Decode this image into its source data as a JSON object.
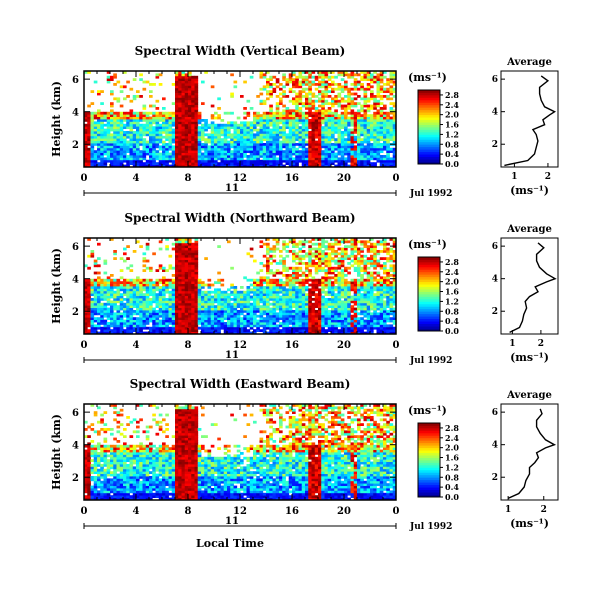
{
  "chart_data": [
    {
      "type": "heatmap",
      "title": "Spectral Width (Vertical Beam)",
      "ylabel": "Height (km)",
      "x_ticks": [
        "0",
        "4",
        "8",
        "12",
        "16",
        "20",
        "0"
      ],
      "y_ticks": [
        "2",
        "4",
        "6"
      ],
      "xlim": [
        0,
        24
      ],
      "ylim": [
        0.6,
        6.5
      ],
      "date_day": "11",
      "date_label": "Jul 1992",
      "colorbar": {
        "unit": "(ms⁻¹)",
        "ticks": [
          "0.0",
          "0.4",
          "0.8",
          "1.2",
          "1.6",
          "2.0",
          "2.4",
          "2.8"
        ],
        "range": [
          0,
          3.0
        ]
      },
      "profile": {
        "title": "Average",
        "xlabel": "(ms⁻¹)",
        "x_ticks": [
          "1",
          "2"
        ],
        "y_ticks": [
          "2",
          "4",
          "6"
        ],
        "xlim": [
          0.6,
          2.3
        ],
        "heights": [
          0.7,
          1.0,
          1.4,
          1.8,
          2.2,
          2.6,
          2.9,
          3.2,
          3.5,
          3.8,
          4.0,
          4.3,
          4.7,
          5.1,
          5.5,
          5.9,
          6.2
        ],
        "values": [
          0.7,
          1.4,
          1.6,
          1.65,
          1.7,
          1.65,
          1.55,
          1.9,
          1.85,
          2.05,
          2.2,
          1.9,
          1.8,
          1.75,
          1.75,
          2.0,
          1.8
        ]
      }
    },
    {
      "type": "heatmap",
      "title": "Spectral Width (Northward Beam)",
      "ylabel": "Height (km)",
      "x_ticks": [
        "0",
        "4",
        "8",
        "12",
        "16",
        "20",
        "0"
      ],
      "y_ticks": [
        "2",
        "4",
        "6"
      ],
      "xlim": [
        0,
        24
      ],
      "ylim": [
        0.6,
        6.5
      ],
      "date_day": "11",
      "date_label": "Jul 1992",
      "colorbar": {
        "unit": "(ms⁻¹)",
        "ticks": [
          "0.0",
          "0.4",
          "0.8",
          "1.2",
          "1.6",
          "2.0",
          "2.4",
          "2.8"
        ],
        "range": [
          0,
          3.0
        ]
      },
      "profile": {
        "title": "Average",
        "xlabel": "(ms⁻¹)",
        "x_ticks": [
          "1",
          "2"
        ],
        "y_ticks": [
          "2",
          "4",
          "6"
        ],
        "xlim": [
          0.6,
          2.6
        ],
        "heights": [
          0.7,
          1.0,
          1.4,
          1.8,
          2.2,
          2.6,
          2.9,
          3.2,
          3.5,
          3.8,
          4.0,
          4.3,
          4.7,
          5.1,
          5.5,
          5.9,
          6.2
        ],
        "values": [
          0.9,
          1.25,
          1.35,
          1.4,
          1.5,
          1.45,
          1.6,
          1.9,
          1.8,
          2.2,
          2.5,
          2.2,
          1.95,
          1.85,
          1.85,
          2.1,
          1.9
        ]
      }
    },
    {
      "type": "heatmap",
      "title": "Spectral Width (Eastward Beam)",
      "ylabel": "Height (km)",
      "x_ticks": [
        "0",
        "4",
        "8",
        "12",
        "16",
        "20",
        "0"
      ],
      "y_ticks": [
        "2",
        "4",
        "6"
      ],
      "xlim": [
        0,
        24
      ],
      "ylim": [
        0.6,
        6.5
      ],
      "date_day": "11",
      "date_label": "Jul 1992",
      "xlabel": "Local Time",
      "colorbar": {
        "unit": "(ms⁻¹)",
        "ticks": [
          "0.0",
          "0.4",
          "0.8",
          "1.2",
          "1.6",
          "2.0",
          "2.4",
          "2.8"
        ],
        "range": [
          0,
          3.0
        ]
      },
      "profile": {
        "title": "Average",
        "xlabel": "(ms⁻¹)",
        "x_ticks": [
          "1",
          "2"
        ],
        "y_ticks": [
          "2",
          "4",
          "6"
        ],
        "xlim": [
          0.8,
          2.4
        ],
        "heights": [
          0.7,
          1.0,
          1.4,
          1.8,
          2.2,
          2.6,
          2.9,
          3.2,
          3.5,
          3.8,
          4.0,
          4.3,
          4.7,
          5.1,
          5.5,
          5.9,
          6.2
        ],
        "values": [
          1.0,
          1.3,
          1.45,
          1.5,
          1.6,
          1.6,
          1.75,
          1.85,
          1.8,
          2.05,
          2.3,
          2.05,
          1.9,
          1.8,
          1.8,
          1.95,
          1.9
        ]
      }
    }
  ]
}
